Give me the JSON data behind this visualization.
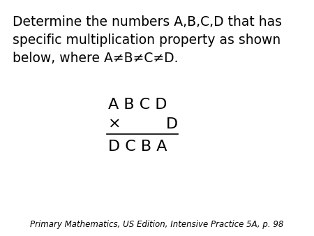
{
  "background_color": "#ffffff",
  "title_text_line1": "Determine the numbers A,B,C,D that has",
  "title_text_line2": "specific multiplication property as shown",
  "title_text_line3": "below, where A≠B≠C≠D.",
  "problem_line1": "A B C D",
  "problem_line2_symbol": "×",
  "problem_line2_var": "D",
  "problem_line3": "D C B A",
  "footer": "Primary Mathematics, US Edition, Intensive Practice 5A, p. 98",
  "text_color": "#000000",
  "body_fontsize": 13.5,
  "problem_fontsize": 16,
  "footer_fontsize": 8.5,
  "fig_width": 4.5,
  "fig_height": 3.38,
  "dpi": 100
}
